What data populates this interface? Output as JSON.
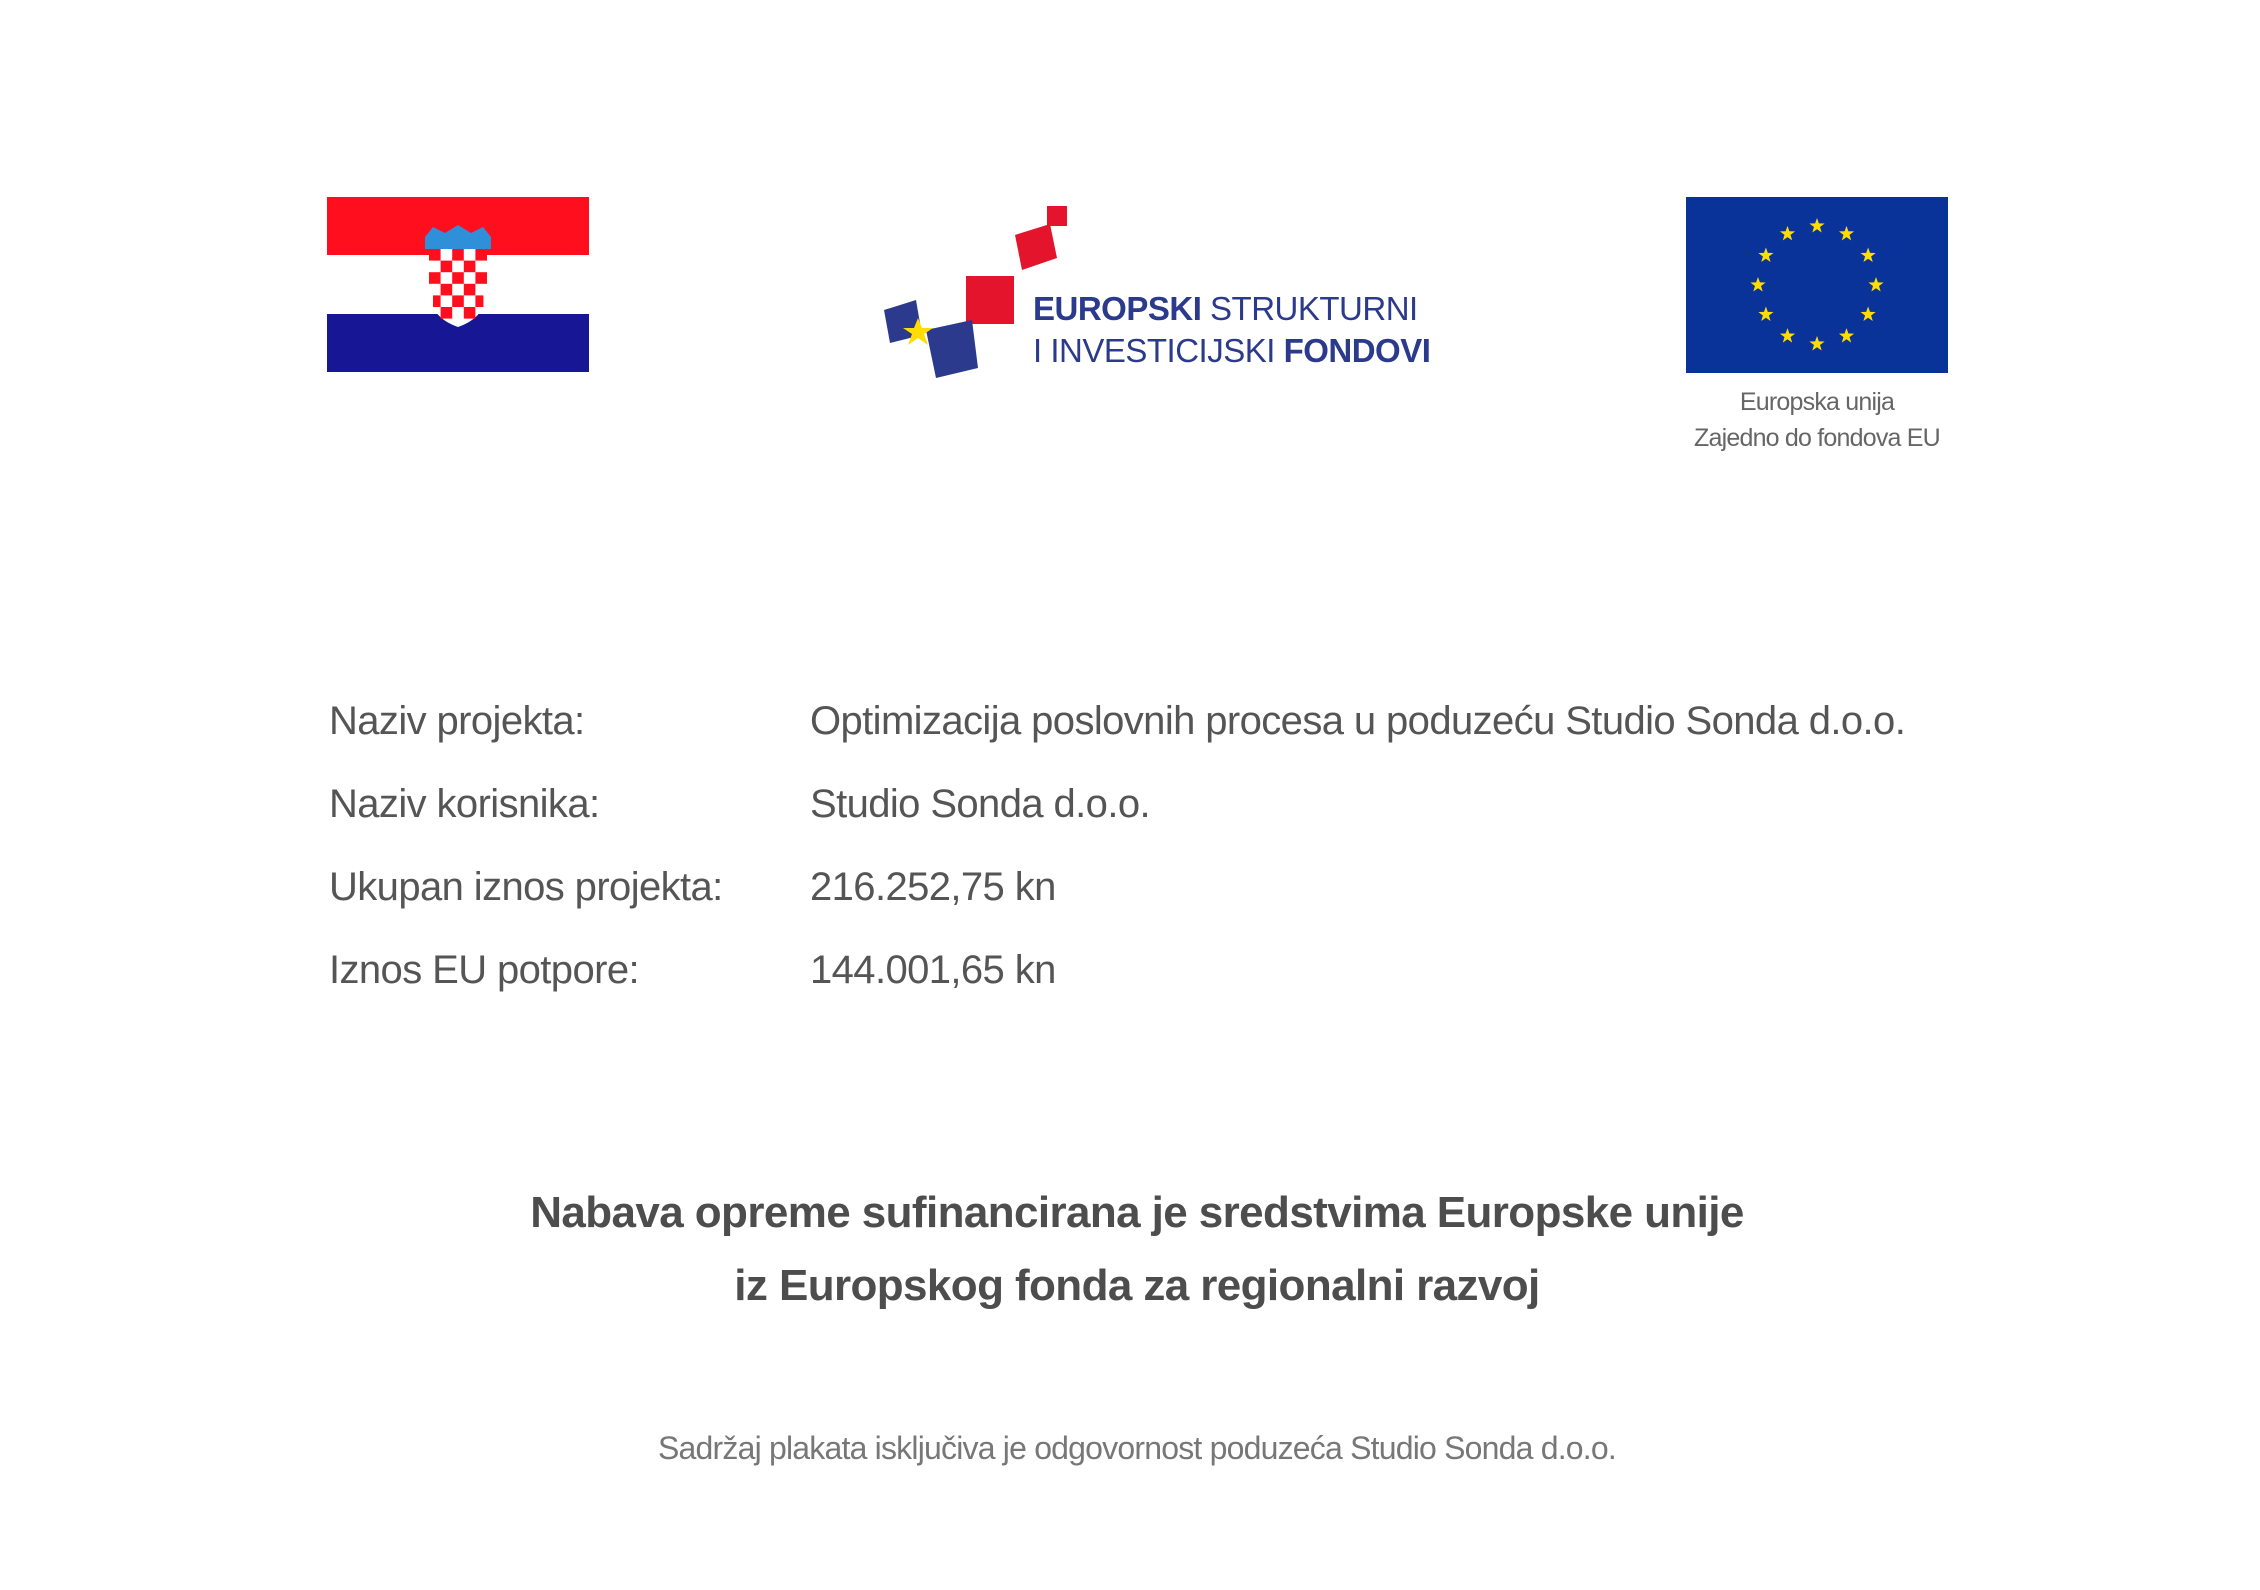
{
  "logos": {
    "croatia_flag": "croatian-flag",
    "esif": {
      "line1_bold": "EUROPSKI",
      "line1_regular": "STRUKTURNI",
      "line2_regular": "I INVESTICIJSKI",
      "line2_bold": "FONDOVI"
    },
    "eu_flag": "eu-flag",
    "eu_caption": [
      "Europska unija",
      "Zajedno do fondova EU"
    ]
  },
  "colors": {
    "red": "#FF0F1E",
    "blue": "#171796",
    "eu_blue": "#0A3399",
    "eu_gold": "#FFDD00",
    "esif_blue": "#2B3A8C",
    "esif_red": "#E3142B"
  },
  "info": [
    {
      "label": "Naziv projekta:",
      "value": "Optimizacija poslovnih procesa u poduzeću Studio Sonda d.o.o."
    },
    {
      "label": "Naziv korisnika:",
      "value": "Studio Sonda d.o.o."
    },
    {
      "label": "Ukupan iznos projekta:",
      "value": "216.252,75 kn"
    },
    {
      "label": "Iznos EU potpore:",
      "value": "144.001,65 kn"
    }
  ],
  "heading": [
    "Nabava opreme sufinancirana je sredstvima Europske unije",
    "iz Europskog fonda za regionalni razvoj"
  ],
  "footer": "Sadržaj plakata isključiva je odgovornost poduzeća Studio Sonda d.o.o."
}
